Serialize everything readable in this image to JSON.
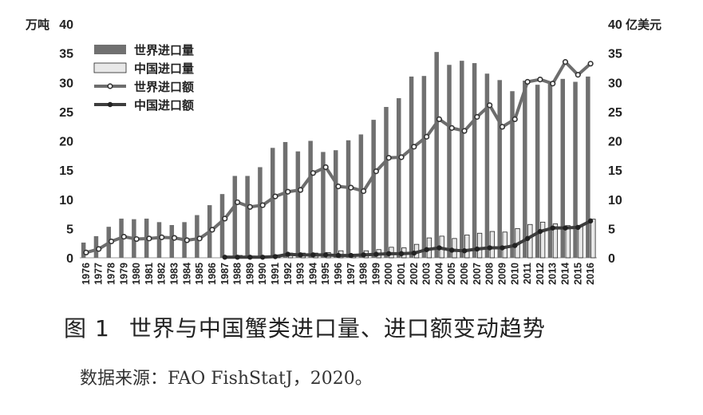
{
  "chart_data": {
    "type": "bar",
    "left_axis": {
      "unit": "万吨",
      "ticks": [
        0,
        5,
        10,
        15,
        20,
        25,
        30,
        35,
        40
      ],
      "range": [
        0,
        40
      ]
    },
    "right_axis": {
      "unit": "亿美元",
      "ticks": [
        0,
        5,
        10,
        15,
        20,
        25,
        30,
        35,
        40
      ],
      "range": [
        0,
        40
      ]
    },
    "categories": [
      "1976",
      "1977",
      "1978",
      "1979",
      "1980",
      "1981",
      "1982",
      "1983",
      "1984",
      "1985",
      "1986",
      "1987",
      "1988",
      "1989",
      "1990",
      "1991",
      "1992",
      "1993",
      "1994",
      "1995",
      "1996",
      "1997",
      "1998",
      "1999",
      "2000",
      "2001",
      "2002",
      "2003",
      "2004",
      "2005",
      "2006",
      "2007",
      "2008",
      "2009",
      "2010",
      "2011",
      "2012",
      "2013",
      "2014",
      "2015",
      "2016"
    ],
    "series": [
      {
        "name": "世界进口量",
        "kind": "bar",
        "axis": "left",
        "color": "#707070",
        "values": [
          2.6,
          3.7,
          5.3,
          6.7,
          6.6,
          6.7,
          6.1,
          5.6,
          6.1,
          7.3,
          9.0,
          10.9,
          14.0,
          14.0,
          15.5,
          18.8,
          19.8,
          18.2,
          20.0,
          18.1,
          18.4,
          20.1,
          21.1,
          23.6,
          25.8,
          27.3,
          31.0,
          31.1,
          35.2,
          33.0,
          33.7,
          33.3,
          31.5,
          30.4,
          28.5,
          30.3,
          29.6,
          29.8,
          30.6,
          30.1,
          31.0
        ]
      },
      {
        "name": "中国进口量",
        "kind": "bar",
        "axis": "left",
        "color": "#e8e8e8",
        "values": [
          null,
          null,
          null,
          null,
          null,
          null,
          null,
          null,
          null,
          null,
          null,
          0.3,
          0.4,
          0.3,
          0.3,
          0.5,
          0.8,
          0.8,
          0.8,
          0.9,
          1.2,
          0.6,
          1.2,
          1.4,
          1.8,
          1.7,
          2.3,
          3.4,
          3.7,
          3.3,
          3.9,
          4.2,
          4.5,
          4.4,
          5.0,
          5.7,
          6.1,
          5.8,
          5.5,
          5.4,
          6.6
        ]
      },
      {
        "name": "世界进口额",
        "kind": "line",
        "axis": "right",
        "color": "#6d6d6d",
        "values": [
          0.9,
          1.5,
          2.8,
          3.6,
          3.2,
          3.3,
          3.5,
          3.4,
          3.0,
          3.3,
          4.8,
          6.7,
          9.5,
          8.7,
          9.0,
          10.5,
          11.3,
          11.6,
          14.5,
          15.5,
          12.2,
          12.0,
          11.4,
          14.8,
          17.1,
          17.2,
          19.0,
          20.7,
          23.7,
          22.2,
          21.7,
          24.1,
          26.1,
          22.4,
          23.7,
          30.1,
          30.5,
          29.8,
          33.5,
          31.3,
          33.2
        ]
      },
      {
        "name": "中国进口额",
        "kind": "line",
        "axis": "right",
        "color": "#3d3d3d",
        "values": [
          null,
          null,
          null,
          null,
          null,
          null,
          null,
          null,
          null,
          null,
          null,
          0.1,
          0.1,
          0.1,
          0.1,
          0.2,
          0.6,
          0.5,
          0.5,
          0.5,
          0.4,
          0.4,
          0.5,
          0.6,
          0.7,
          0.7,
          0.8,
          1.4,
          1.7,
          1.3,
          1.2,
          1.5,
          1.7,
          1.7,
          2.1,
          3.3,
          4.5,
          5.1,
          5.1,
          5.2,
          6.3
        ]
      }
    ],
    "legend_position": "top-left",
    "grid": false
  },
  "caption": {
    "label": "图",
    "number": "1",
    "text": "世界与中国蟹类进口量、进口额变动趋势"
  },
  "source": {
    "text": "数据来源：FAO FishStatJ，2020。"
  }
}
